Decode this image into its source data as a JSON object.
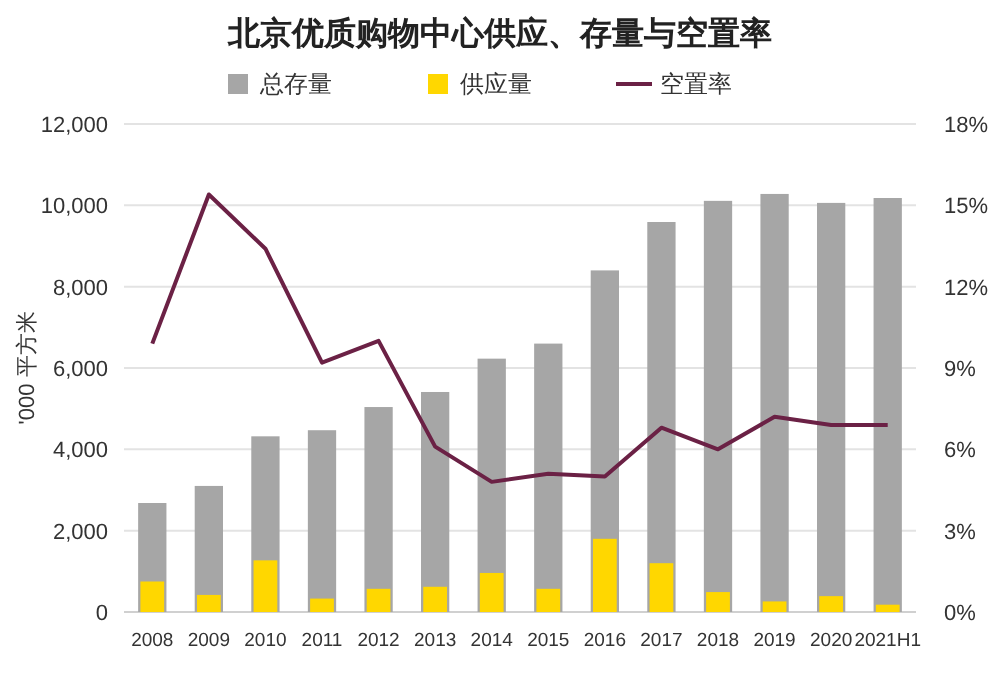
{
  "chart_data": {
    "type": "bar",
    "title": "北京优质购物中心供应、存量与空置率",
    "ylabel": "'000 平方米",
    "categories": [
      "2008",
      "2009",
      "2010",
      "2011",
      "2012",
      "2013",
      "2014",
      "2015",
      "2016",
      "2017",
      "2018",
      "2019",
      "2020",
      "2021H1"
    ],
    "series": [
      {
        "name": "总存量",
        "color": "#a6a6a6",
        "values": [
          2680,
          3100,
          4320,
          4470,
          5040,
          5410,
          6230,
          6600,
          8400,
          9590,
          10110,
          10280,
          10060,
          10180
        ]
      },
      {
        "name": "供应量",
        "color": "#ffd700",
        "values": [
          750,
          420,
          1270,
          330,
          570,
          620,
          960,
          570,
          1800,
          1200,
          490,
          260,
          390,
          180
        ]
      },
      {
        "name": "空置率",
        "type": "line",
        "axis": "y2",
        "color": "#6b2145",
        "values": [
          9.9,
          15.4,
          13.4,
          9.2,
          10.0,
          6.1,
          4.8,
          5.1,
          5.0,
          6.8,
          6.0,
          7.2,
          6.9,
          6.9
        ]
      }
    ],
    "ylim": [
      0,
      12000
    ],
    "yticks": [
      {
        "value": 0,
        "label": "0"
      },
      {
        "value": 2000,
        "label": "2,000"
      },
      {
        "value": 4000,
        "label": "4,000"
      },
      {
        "value": 6000,
        "label": "6,000"
      },
      {
        "value": 8000,
        "label": "8,000"
      },
      {
        "value": 10000,
        "label": "10,000"
      },
      {
        "value": 12000,
        "label": "12,000"
      }
    ],
    "y2lim": [
      0,
      18
    ],
    "y2ticks": [
      {
        "value": 0,
        "label": "0%"
      },
      {
        "value": 3,
        "label": "3%"
      },
      {
        "value": 6,
        "label": "6%"
      },
      {
        "value": 9,
        "label": "9%"
      },
      {
        "value": 12,
        "label": "12%"
      },
      {
        "value": 15,
        "label": "15%"
      },
      {
        "value": 18,
        "label": "18%"
      }
    ],
    "grid": "y",
    "legend": "top"
  }
}
